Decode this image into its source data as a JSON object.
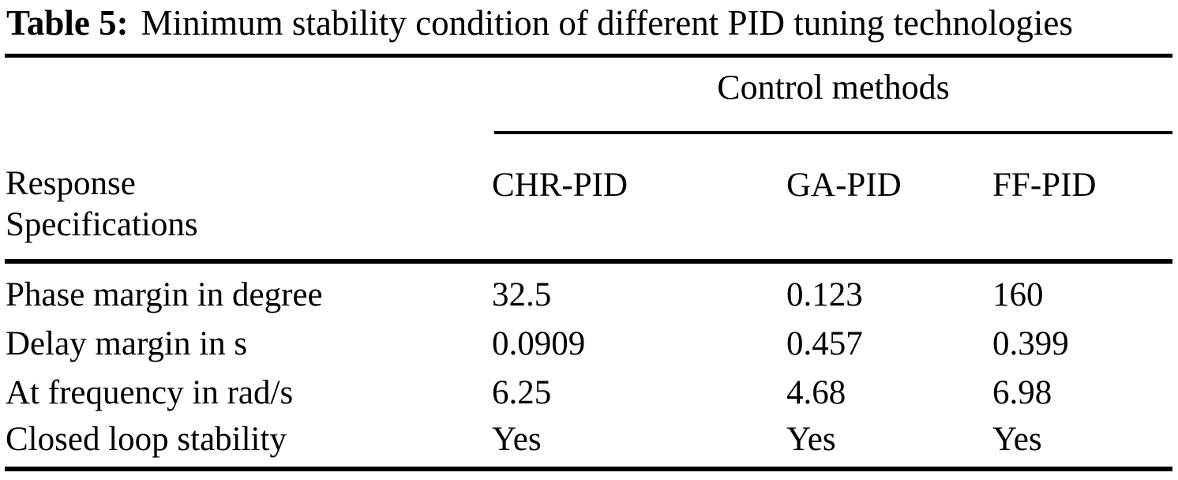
{
  "caption": {
    "label": "Table 5:",
    "text": "Minimum stability condition of different PID tuning technologies"
  },
  "table": {
    "group_header": "Control methods",
    "stub_header": {
      "line1": "Response",
      "line2": "Specifications"
    },
    "columns": [
      "CHR-PID",
      "GA-PID",
      "FF-PID"
    ],
    "rows": [
      {
        "label": "Phase margin in degree",
        "values": [
          "32.5",
          "0.123",
          "160"
        ]
      },
      {
        "label": "Delay margin in s",
        "values": [
          "0.0909",
          "0.457",
          "0.399"
        ]
      },
      {
        "label": "At frequency in rad/s",
        "values": [
          "6.25",
          "4.68",
          "6.98"
        ]
      },
      {
        "label": "Closed loop stability",
        "values": [
          "Yes",
          "Yes",
          "Yes"
        ]
      }
    ]
  },
  "colors": {
    "text": "#000000",
    "background": "#ffffff",
    "rule": "#000000"
  }
}
